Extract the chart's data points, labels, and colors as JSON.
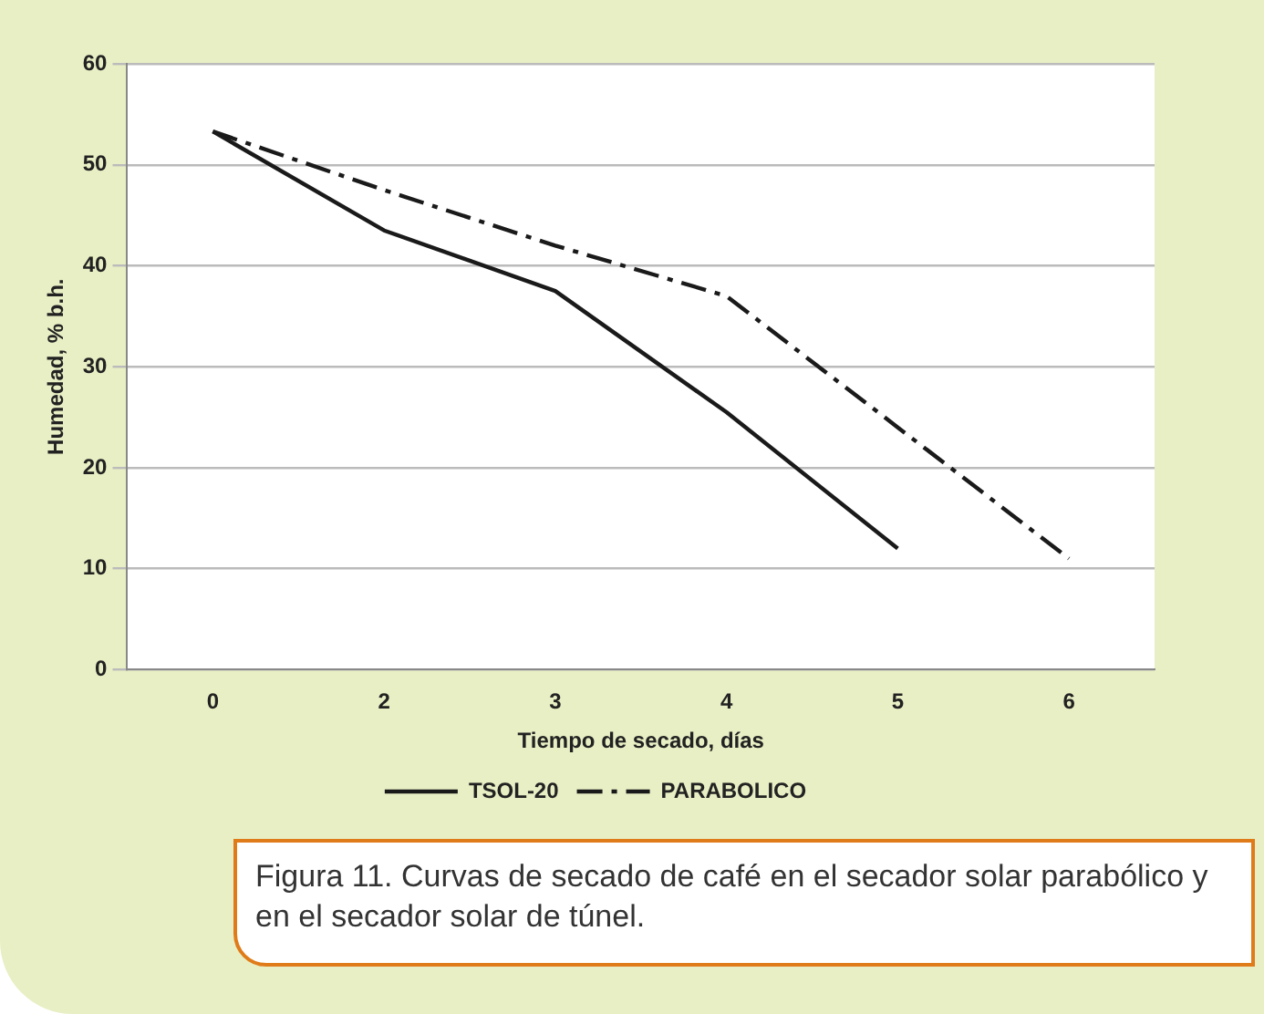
{
  "chart_data": {
    "type": "line",
    "xlabel": "Tiempo de secado, días",
    "ylabel": "Humedad, % b.h.",
    "categories": [
      "0",
      "2",
      "3",
      "4",
      "5",
      "6"
    ],
    "series": [
      {
        "name": "TSOL-20",
        "color": "#1a1a1a",
        "line_style": "solid",
        "values": [
          53.3,
          43.5,
          37.5,
          25.5,
          12,
          null
        ]
      },
      {
        "name": "PARABOLICO",
        "color": "#1a1a1a",
        "line_style": "dashdot",
        "values": [
          53.3,
          47.5,
          42,
          37,
          24,
          11
        ]
      }
    ],
    "ylim": [
      0,
      60
    ],
    "yticks": [
      0,
      10,
      20,
      30,
      40,
      50,
      60
    ],
    "grid": "y",
    "legend": "bottom",
    "marker": "none",
    "annotations": [
      "Figura 11. Curvas de secado de café en el secador solar parabólico y en el secador solar de túnel."
    ]
  }
}
